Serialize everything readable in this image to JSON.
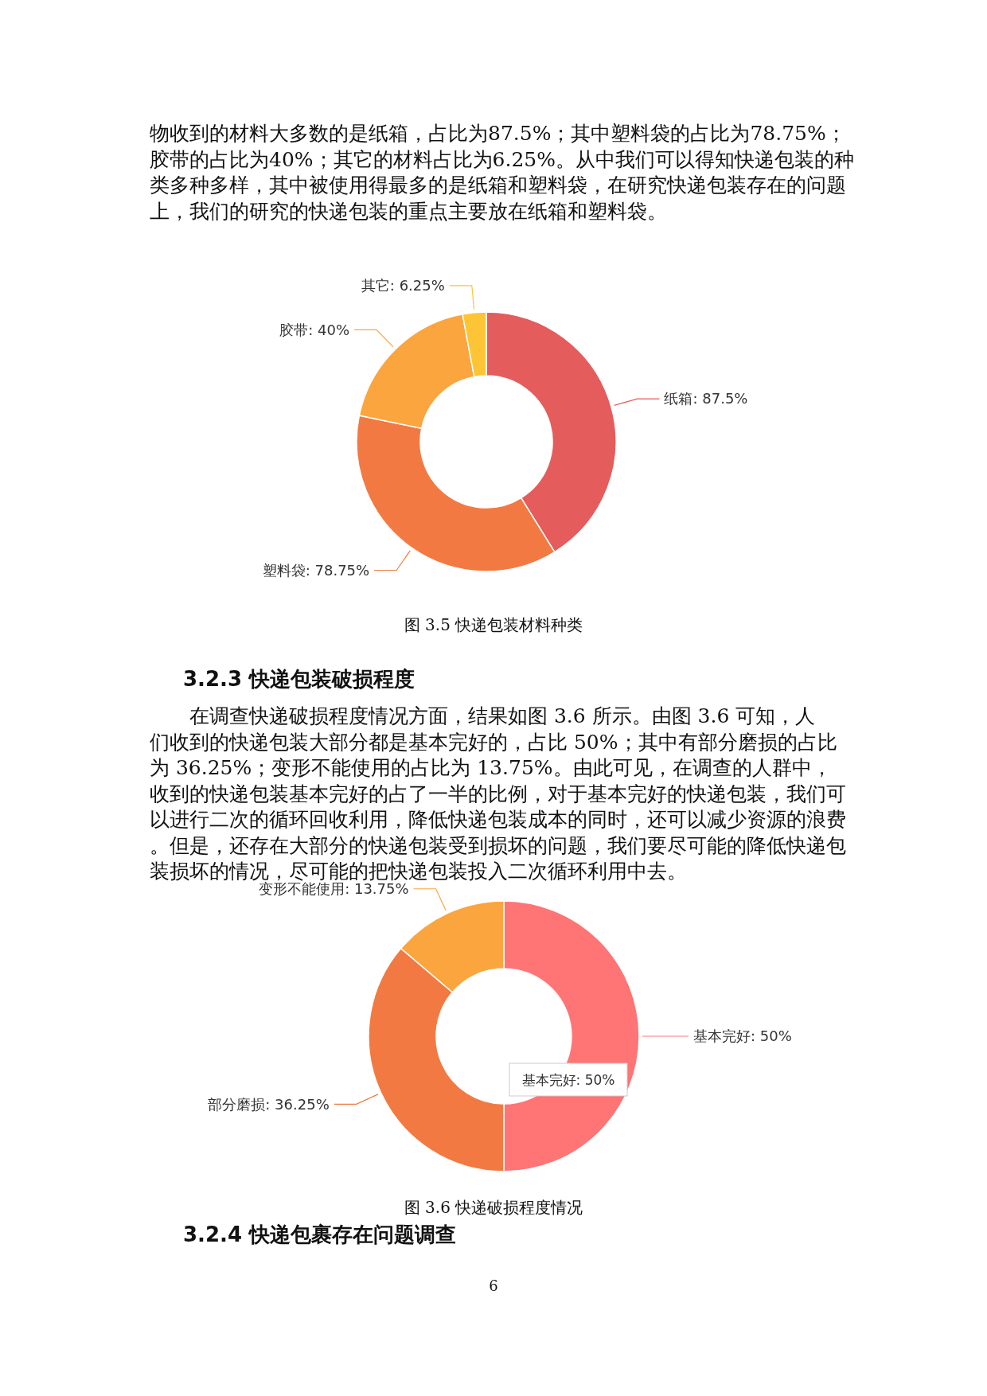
{
  "chart_data": [
    {
      "type": "donut",
      "title": "图 3.5 快递包装材料种类",
      "categories": [
        "纸箱",
        "塑料袋",
        "胶带",
        "其它"
      ],
      "values": [
        87.5,
        78.75,
        40,
        6.25
      ],
      "value_labels": [
        "87.5%",
        "78.75%",
        "40%",
        "6.25%"
      ],
      "colors": [
        "#e55c5c",
        "#f27a42",
        "#fba53f",
        "#fdc535"
      ],
      "annotations": [
        "物收到的材料大多数的是纸箱，占比为87.5%；其中塑料袋的占比为78.75%；胶带的占比为40%；其它的材料占比为6.25%。从中我们可以得知快递包装的种类多种多样，其中被使用得最多的是纸箱和塑料袋，在研究快递包装存在的问题上，我们的研究的快递包装的重点主要放在纸箱和塑料袋。"
      ]
    },
    {
      "type": "donut",
      "title": "图 3.6 快递破损程度情况",
      "categories": [
        "基本完好",
        "部分磨损",
        "变形不能使用"
      ],
      "values": [
        50,
        36.25,
        13.75
      ],
      "value_labels": [
        "50%",
        "36.25%",
        "13.75%"
      ],
      "colors": [
        "#ff7474",
        "#f27a42",
        "#fba53f"
      ],
      "annotations": [
        "3.2.3 快递包装破损程度",
        "在调查快递破损程度情况方面，结果如图 3.6 所示。由图 3.6 可知，人们收到的快递包装大部分都是基本完好的，占比 50%；其中有部分磨损的占比为 36.25%；变形不能使用的占比为 13.75%。由此可见，在调查的人群中，收到的快递包装基本完好的占了一半的比例，对于基本完好的快递包装，我们可以进行二次的循环回收利用，降低快递包装成本的同时，还可以减少资源的浪费。但是，还存在大部分的快递包装受到损坏的问题，我们要尽可能的降低快递包装损坏的情况，尽可能的把快递包装投入二次循环利用中去。",
        "基本完好: 50%",
        "3.2.4 快递包裹存在问题调查",
        "6"
      ]
    }
  ]
}
